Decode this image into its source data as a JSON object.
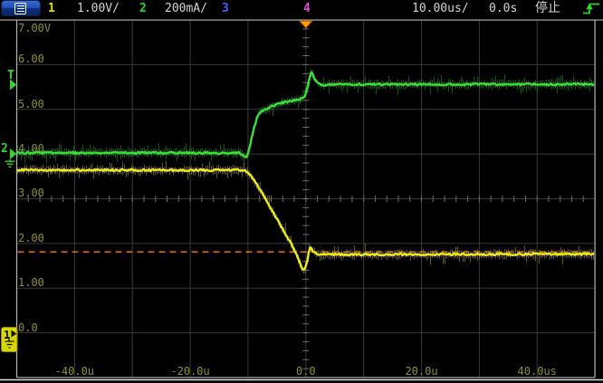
{
  "header": {
    "menu_icon": "hamburger-menu",
    "channels": [
      {
        "num": "1",
        "scale": "1.00V/",
        "color": "#e0e000"
      },
      {
        "num": "2",
        "scale": "200mA/",
        "color": "#2fd82f"
      },
      {
        "num": "3",
        "scale": "",
        "color": "#4d5dff"
      },
      {
        "num": "4",
        "scale": "",
        "color": "#e14ad2"
      }
    ],
    "timebase": "10.00us/",
    "delay": "0.0s",
    "run_state": "停止",
    "trigger_icon": "rising-edge-trigger"
  },
  "axes": {
    "y_labels": [
      "7.00V",
      "6.00",
      "5.00",
      "4.00",
      "3.00",
      "2.00",
      "1.00",
      "0.0"
    ],
    "x_labels": [
      "-40.0u",
      "-20.0u",
      "0.0",
      "20.0u",
      "40.0us"
    ]
  },
  "markers": {
    "trigger_level_label": "T",
    "ch2_ground_label": "2",
    "ch1_ground_label": "1",
    "trigger_time_marker": "orange-triangle-at-t0",
    "trigger_level_mA": 308,
    "dashed_reference_volts": 1.81
  },
  "colors": {
    "ch1_trace": "#ecec20",
    "ch1_fuzz": "#a2a200",
    "ch2_trace": "#3ae03a",
    "ch2_fuzz": "#189a18",
    "grid": "#3a3a3a",
    "grid_ticks": "#707070",
    "frame": "#b4b4b4",
    "axis_text": "#8f8f3c",
    "dashed_line": "#ff7800",
    "trigger_marker_fill": "#ffa000",
    "trigger_marker_edge": "#b04800"
  },
  "chart_data": {
    "type": "line",
    "title": "",
    "xlabel": "time",
    "x_unit": "us",
    "x_range": [
      -50,
      50
    ],
    "x_tick_labels": [
      "-40.0u",
      "-20.0u",
      "0.0",
      "20.0u",
      "40.0us"
    ],
    "x_ticks_us": [
      -40,
      -20,
      0,
      20,
      40
    ],
    "y_axis": {
      "volts_top": 7.0,
      "volts_bottom": -1.0,
      "volts_per_div": 1.0,
      "divisions": 8
    },
    "grid": "on",
    "timebase_per_div": "10.00us",
    "trigger_time_us": 0,
    "dashed_reference_volts": 1.81,
    "series": [
      {
        "name": "CH1",
        "unit": "V",
        "scale": "1.00V/div",
        "zero_volts_on_grid": 0.0,
        "points": [
          [
            -50,
            3.64
          ],
          [
            -10.8,
            3.64
          ],
          [
            -10.3,
            3.62
          ],
          [
            -9.8,
            3.56
          ],
          [
            -9.2,
            3.46
          ],
          [
            -8.0,
            3.22
          ],
          [
            -6.5,
            2.89
          ],
          [
            -5.0,
            2.55
          ],
          [
            -3.5,
            2.21
          ],
          [
            -2.0,
            1.87
          ],
          [
            -1.2,
            1.62
          ],
          [
            -0.8,
            1.47
          ],
          [
            -0.55,
            1.41
          ],
          [
            -0.3,
            1.41
          ],
          [
            0.0,
            1.47
          ],
          [
            0.35,
            1.68
          ],
          [
            0.6,
            1.85
          ],
          [
            0.78,
            1.94
          ],
          [
            1.0,
            1.88
          ],
          [
            1.3,
            1.81
          ],
          [
            1.7,
            1.77
          ],
          [
            2.5,
            1.75
          ],
          [
            50,
            1.76
          ]
        ]
      },
      {
        "name": "CH2",
        "unit": "mA",
        "scale": "200mA/div",
        "zero_mA_on_grid_volts": 4.0,
        "points": [
          [
            -50,
            5
          ],
          [
            -11.5,
            5
          ],
          [
            -11.0,
            -2
          ],
          [
            -10.5,
            -14
          ],
          [
            -10.1,
            -8
          ],
          [
            -9.6,
            45
          ],
          [
            -9.0,
            115
          ],
          [
            -8.4,
            165
          ],
          [
            -7.8,
            188
          ],
          [
            -7.0,
            200
          ],
          [
            -6.0,
            212
          ],
          [
            -4.5,
            226
          ],
          [
            -3.0,
            236
          ],
          [
            -1.5,
            244
          ],
          [
            -0.6,
            248
          ],
          [
            -0.2,
            258
          ],
          [
            0.3,
            300
          ],
          [
            0.75,
            355
          ],
          [
            0.95,
            369
          ],
          [
            1.2,
            358
          ],
          [
            1.5,
            338
          ],
          [
            1.9,
            320
          ],
          [
            2.4,
            310
          ],
          [
            3.0,
            306
          ],
          [
            3.6,
            310
          ],
          [
            4.5,
            312
          ],
          [
            50,
            312
          ]
        ]
      }
    ]
  }
}
